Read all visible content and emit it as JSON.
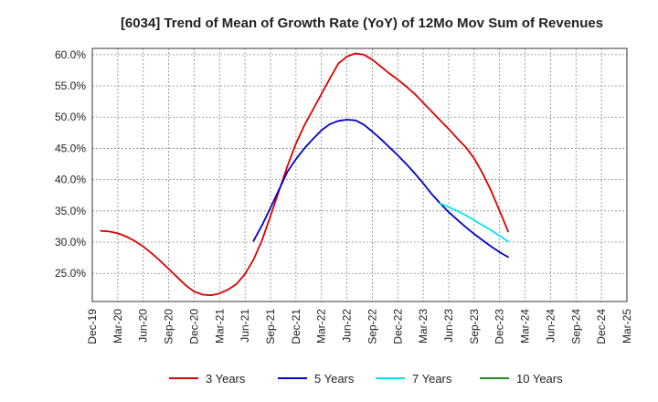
{
  "chart_data": {
    "type": "line",
    "title": "[6034]  Trend of Mean of Growth Rate (YoY) of 12Mo Mov Sum of Revenues",
    "xlabel": "",
    "ylabel": "",
    "ylim": [
      0.205,
      0.61
    ],
    "y_ticks": [
      0.25,
      0.3,
      0.35,
      0.4,
      0.45,
      0.5,
      0.55,
      0.6
    ],
    "y_tick_labels": [
      "25.0%",
      "30.0%",
      "35.0%",
      "40.0%",
      "45.0%",
      "50.0%",
      "55.0%",
      "60.0%"
    ],
    "x_ticks": [
      "Dec-19",
      "Mar-20",
      "Jun-20",
      "Sep-20",
      "Dec-20",
      "Mar-21",
      "Jun-21",
      "Sep-21",
      "Dec-21",
      "Mar-22",
      "Jun-22",
      "Sep-22",
      "Dec-22",
      "Mar-23",
      "Jun-23",
      "Sep-23",
      "Dec-23",
      "Mar-24",
      "Jun-24",
      "Sep-24",
      "Dec-24",
      "Mar-25"
    ],
    "grid": true,
    "legend_position": "bottom",
    "series": [
      {
        "name": "3 Years",
        "color": "#dd0000",
        "points": [
          [
            1,
            0.318
          ],
          [
            2,
            0.317
          ],
          [
            3,
            0.314
          ],
          [
            4,
            0.309
          ],
          [
            5,
            0.302
          ],
          [
            6,
            0.293
          ],
          [
            7,
            0.282
          ],
          [
            8,
            0.27
          ],
          [
            9,
            0.257
          ],
          [
            10,
            0.244
          ],
          [
            11,
            0.231
          ],
          [
            12,
            0.221
          ],
          [
            13,
            0.216
          ],
          [
            14,
            0.215
          ],
          [
            15,
            0.218
          ],
          [
            16,
            0.224
          ],
          [
            17,
            0.233
          ],
          [
            18,
            0.249
          ],
          [
            19,
            0.272
          ],
          [
            20,
            0.303
          ],
          [
            21,
            0.342
          ],
          [
            22,
            0.382
          ],
          [
            23,
            0.422
          ],
          [
            24,
            0.458
          ],
          [
            25,
            0.487
          ],
          [
            26,
            0.512
          ],
          [
            27,
            0.537
          ],
          [
            28,
            0.562
          ],
          [
            29,
            0.586
          ],
          [
            30,
            0.597
          ],
          [
            31,
            0.602
          ],
          [
            32,
            0.6
          ],
          [
            33,
            0.592
          ],
          [
            34,
            0.581
          ],
          [
            35,
            0.57
          ],
          [
            36,
            0.56
          ],
          [
            37,
            0.549
          ],
          [
            38,
            0.537
          ],
          [
            39,
            0.523
          ],
          [
            40,
            0.509
          ],
          [
            41,
            0.495
          ],
          [
            42,
            0.481
          ],
          [
            43,
            0.466
          ],
          [
            44,
            0.452
          ],
          [
            45,
            0.434
          ],
          [
            46,
            0.41
          ],
          [
            47,
            0.382
          ],
          [
            48,
            0.35
          ],
          [
            49,
            0.317
          ]
        ]
      },
      {
        "name": "5 Years",
        "color": "#0000cc",
        "points": [
          [
            19,
            0.302
          ],
          [
            20,
            0.327
          ],
          [
            21,
            0.355
          ],
          [
            22,
            0.384
          ],
          [
            23,
            0.413
          ],
          [
            24,
            0.433
          ],
          [
            25,
            0.45
          ],
          [
            26,
            0.465
          ],
          [
            27,
            0.479
          ],
          [
            28,
            0.489
          ],
          [
            29,
            0.494
          ],
          [
            30,
            0.496
          ],
          [
            31,
            0.495
          ],
          [
            32,
            0.488
          ],
          [
            33,
            0.477
          ],
          [
            34,
            0.465
          ],
          [
            35,
            0.452
          ],
          [
            36,
            0.439
          ],
          [
            37,
            0.425
          ],
          [
            38,
            0.41
          ],
          [
            39,
            0.394
          ],
          [
            40,
            0.377
          ],
          [
            41,
            0.362
          ],
          [
            42,
            0.348
          ],
          [
            43,
            0.336
          ],
          [
            44,
            0.324
          ],
          [
            45,
            0.313
          ],
          [
            46,
            0.303
          ],
          [
            47,
            0.293
          ],
          [
            48,
            0.284
          ],
          [
            49,
            0.276
          ]
        ]
      },
      {
        "name": "7 Years",
        "color": "#00e5ee",
        "points": [
          [
            41,
            0.362
          ],
          [
            42,
            0.356
          ],
          [
            43,
            0.35
          ],
          [
            44,
            0.343
          ],
          [
            45,
            0.335
          ],
          [
            46,
            0.327
          ],
          [
            47,
            0.319
          ],
          [
            48,
            0.31
          ],
          [
            49,
            0.301
          ]
        ]
      },
      {
        "name": "10 Years",
        "color": "#228B22",
        "points": []
      }
    ]
  }
}
